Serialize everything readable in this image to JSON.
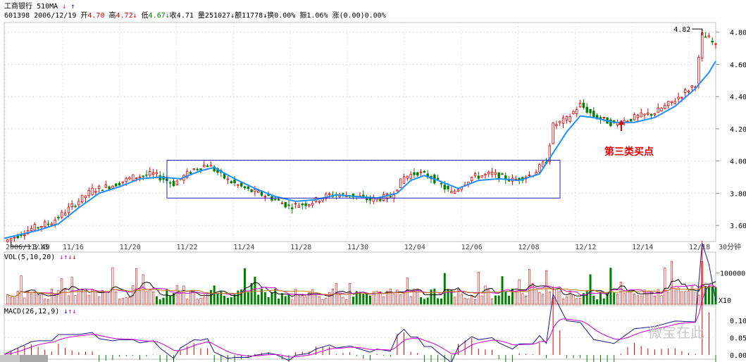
{
  "header": {
    "line1": {
      "name": "工商银行",
      "period": "510MA"
    },
    "line2": {
      "code_date": "601398 2006/12/19",
      "open_label": "开",
      "open": "4.70",
      "high_label": "高",
      "high": "4.72",
      "low_label": "低",
      "low": "4.67",
      "close_label": "收",
      "close": "4.71",
      "vol_label": "量",
      "vol": "251027",
      "amt_label": "额",
      "amt": "11778",
      "turn_label": "换",
      "turn": "0.00%",
      "amp_label": "振",
      "amp": "1.06%",
      "chg_label": "涨",
      "chg": "(0.00)0.00%"
    }
  },
  "vol_panel": {
    "title": "VOL(5,10,20)",
    "tick": "100000",
    "unit": "X10"
  },
  "macd_panel": {
    "title": "MACD(26,12,9)",
    "ticks": [
      "0.10",
      "0.05",
      "0.00"
    ]
  },
  "timeframe": "30分钟",
  "annotation": "第三类买点",
  "watermark": "微宝在此",
  "chart_data": {
    "type": "candlestick",
    "x_labels": [
      "2006/11/13",
      "11/16",
      "11/20",
      "11/22",
      "11/24",
      "11/28",
      "11/30",
      "12/04",
      "12/06",
      "12/08",
      "12/12",
      "12/14",
      "12/18"
    ],
    "y_ticks": [
      "4.80",
      "4.60",
      "4.40",
      "4.20",
      "4.00",
      "3.80",
      "3.60"
    ],
    "ylim": [
      3.5,
      4.86
    ],
    "low_marker": "3.49",
    "high_marker": "4.82",
    "price_path": [
      [
        0,
        3.5
      ],
      [
        8,
        3.58
      ],
      [
        14,
        3.62
      ],
      [
        20,
        3.72
      ],
      [
        26,
        3.82
      ],
      [
        32,
        3.85
      ],
      [
        38,
        3.9
      ],
      [
        44,
        3.92
      ],
      [
        50,
        3.86
      ],
      [
        56,
        3.95
      ],
      [
        60,
        3.98
      ],
      [
        66,
        3.88
      ],
      [
        72,
        3.82
      ],
      [
        78,
        3.78
      ],
      [
        84,
        3.72
      ],
      [
        90,
        3.74
      ],
      [
        96,
        3.79
      ],
      [
        102,
        3.79
      ],
      [
        108,
        3.76
      ],
      [
        114,
        3.78
      ],
      [
        118,
        3.9
      ],
      [
        122,
        3.93
      ],
      [
        126,
        3.9
      ],
      [
        132,
        3.8
      ],
      [
        138,
        3.9
      ],
      [
        144,
        3.92
      ],
      [
        150,
        3.88
      ],
      [
        156,
        3.92
      ],
      [
        160,
        4.0
      ],
      [
        162,
        4.22
      ],
      [
        166,
        4.26
      ],
      [
        170,
        4.35
      ],
      [
        174,
        4.28
      ],
      [
        180,
        4.23
      ],
      [
        186,
        4.27
      ],
      [
        192,
        4.3
      ],
      [
        198,
        4.38
      ],
      [
        204,
        4.48
      ],
      [
        206,
        4.78
      ],
      [
        208,
        4.76
      ],
      [
        210,
        4.71
      ]
    ],
    "ma_path": [
      [
        0,
        3.52
      ],
      [
        10,
        3.57
      ],
      [
        16,
        3.61
      ],
      [
        22,
        3.71
      ],
      [
        28,
        3.8
      ],
      [
        34,
        3.84
      ],
      [
        40,
        3.89
      ],
      [
        46,
        3.9
      ],
      [
        52,
        3.89
      ],
      [
        58,
        3.94
      ],
      [
        62,
        3.96
      ],
      [
        68,
        3.89
      ],
      [
        74,
        3.83
      ],
      [
        80,
        3.78
      ],
      [
        86,
        3.75
      ],
      [
        92,
        3.76
      ],
      [
        98,
        3.79
      ],
      [
        104,
        3.78
      ],
      [
        110,
        3.77
      ],
      [
        116,
        3.8
      ],
      [
        120,
        3.88
      ],
      [
        124,
        3.91
      ],
      [
        128,
        3.88
      ],
      [
        134,
        3.83
      ],
      [
        140,
        3.88
      ],
      [
        146,
        3.89
      ],
      [
        152,
        3.88
      ],
      [
        158,
        3.92
      ],
      [
        162,
        4.05
      ],
      [
        166,
        4.18
      ],
      [
        170,
        4.28
      ],
      [
        174,
        4.27
      ],
      [
        180,
        4.24
      ],
      [
        186,
        4.24
      ],
      [
        192,
        4.27
      ],
      [
        198,
        4.34
      ],
      [
        204,
        4.45
      ],
      [
        208,
        4.55
      ],
      [
        210,
        4.62
      ]
    ]
  }
}
